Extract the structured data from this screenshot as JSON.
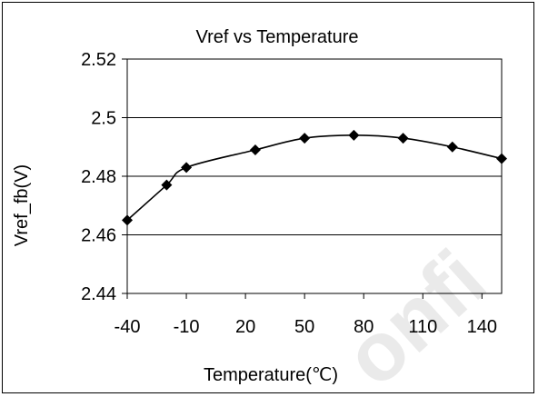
{
  "chart_data": {
    "type": "line",
    "title": "Vref vs Temperature",
    "xlabel": "Temperature(℃)",
    "ylabel": "Vref_fb(V)",
    "x_ticks": [
      "-40",
      "-10",
      "20",
      "50",
      "80",
      "110",
      "140"
    ],
    "y_ticks": [
      "2.44",
      "2.46",
      "2.48",
      "2.5",
      "2.52"
    ],
    "xlim": [
      -40,
      150
    ],
    "ylim": [
      2.44,
      2.52
    ],
    "grid": "horizontal",
    "legend": "none",
    "series": [
      {
        "marker": "diamond",
        "color": "#000000",
        "points": [
          {
            "x": -40,
            "y": 2.465
          },
          {
            "x": -20,
            "y": 2.477
          },
          {
            "x": -10,
            "y": 2.483
          },
          {
            "x": 25,
            "y": 2.489
          },
          {
            "x": 50,
            "y": 2.493
          },
          {
            "x": 75,
            "y": 2.494
          },
          {
            "x": 100,
            "y": 2.493
          },
          {
            "x": 125,
            "y": 2.49
          },
          {
            "x": 150,
            "y": 2.486
          }
        ]
      }
    ]
  },
  "watermark": {
    "text": "onfi"
  }
}
